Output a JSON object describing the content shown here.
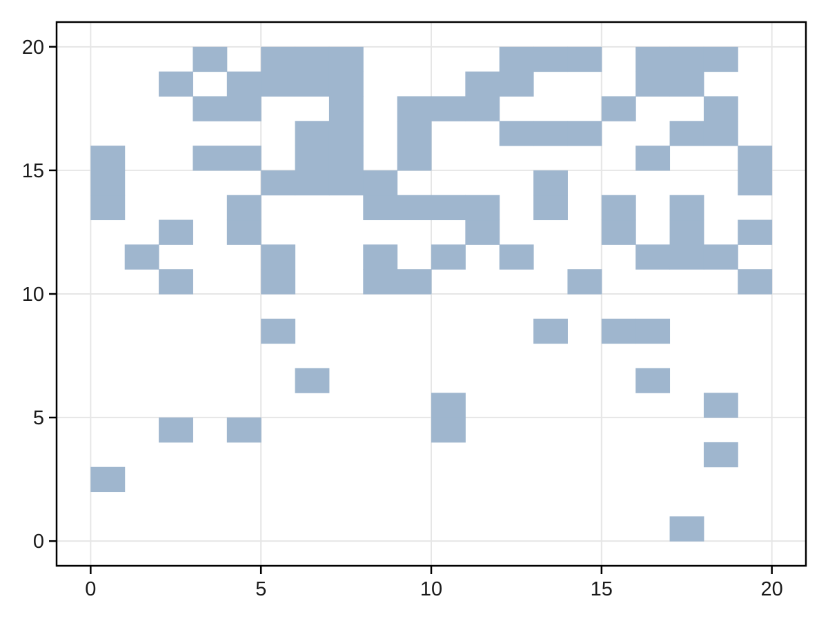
{
  "figure": {
    "background": "#ffffff"
  },
  "chart_data": {
    "type": "heatmap",
    "title": "",
    "subtitle": "",
    "xlabel": "",
    "ylabel": "",
    "legend": null,
    "xlim": [
      -1,
      21
    ],
    "ylim": [
      -1,
      21
    ],
    "x_ticks": [
      0,
      5,
      10,
      15,
      20
    ],
    "y_ticks": [
      0,
      5,
      10,
      15,
      20
    ],
    "grid": true,
    "grid_color": "#e6e6e6",
    "cell_color": "#9fb6ce",
    "cell_size": 1,
    "frame_color": "#000000",
    "tick_color": "#000000",
    "tick_label_color": "#1a1a1a",
    "cells": [
      [
        17,
        0
      ],
      [
        0,
        2
      ],
      [
        18,
        3
      ],
      [
        2,
        4
      ],
      [
        4,
        4
      ],
      [
        10,
        4
      ],
      [
        10,
        5
      ],
      [
        18,
        5
      ],
      [
        6,
        6
      ],
      [
        16,
        6
      ],
      [
        5,
        8
      ],
      [
        13,
        8
      ],
      [
        15,
        8
      ],
      [
        16,
        8
      ],
      [
        2,
        10
      ],
      [
        5,
        10
      ],
      [
        8,
        10
      ],
      [
        9,
        10
      ],
      [
        14,
        10
      ],
      [
        19,
        10
      ],
      [
        1,
        11
      ],
      [
        5,
        11
      ],
      [
        8,
        11
      ],
      [
        10,
        11
      ],
      [
        12,
        11
      ],
      [
        16,
        11
      ],
      [
        17,
        11
      ],
      [
        18,
        11
      ],
      [
        2,
        12
      ],
      [
        4,
        12
      ],
      [
        11,
        12
      ],
      [
        15,
        12
      ],
      [
        17,
        12
      ],
      [
        19,
        12
      ],
      [
        0,
        13
      ],
      [
        4,
        13
      ],
      [
        8,
        13
      ],
      [
        9,
        13
      ],
      [
        10,
        13
      ],
      [
        11,
        13
      ],
      [
        13,
        13
      ],
      [
        15,
        13
      ],
      [
        17,
        13
      ],
      [
        0,
        14
      ],
      [
        5,
        14
      ],
      [
        6,
        14
      ],
      [
        7,
        14
      ],
      [
        8,
        14
      ],
      [
        13,
        14
      ],
      [
        19,
        14
      ],
      [
        0,
        15
      ],
      [
        3,
        15
      ],
      [
        4,
        15
      ],
      [
        6,
        15
      ],
      [
        7,
        15
      ],
      [
        9,
        15
      ],
      [
        16,
        15
      ],
      [
        19,
        15
      ],
      [
        6,
        16
      ],
      [
        7,
        16
      ],
      [
        9,
        16
      ],
      [
        12,
        16
      ],
      [
        13,
        16
      ],
      [
        14,
        16
      ],
      [
        17,
        16
      ],
      [
        18,
        16
      ],
      [
        3,
        17
      ],
      [
        4,
        17
      ],
      [
        7,
        17
      ],
      [
        9,
        17
      ],
      [
        10,
        17
      ],
      [
        11,
        17
      ],
      [
        15,
        17
      ],
      [
        18,
        17
      ],
      [
        2,
        18
      ],
      [
        4,
        18
      ],
      [
        5,
        18
      ],
      [
        6,
        18
      ],
      [
        7,
        18
      ],
      [
        11,
        18
      ],
      [
        12,
        18
      ],
      [
        16,
        18
      ],
      [
        17,
        18
      ],
      [
        3,
        19
      ],
      [
        5,
        19
      ],
      [
        6,
        19
      ],
      [
        7,
        19
      ],
      [
        12,
        19
      ],
      [
        13,
        19
      ],
      [
        14,
        19
      ],
      [
        16,
        19
      ],
      [
        17,
        19
      ],
      [
        18,
        19
      ]
    ]
  }
}
